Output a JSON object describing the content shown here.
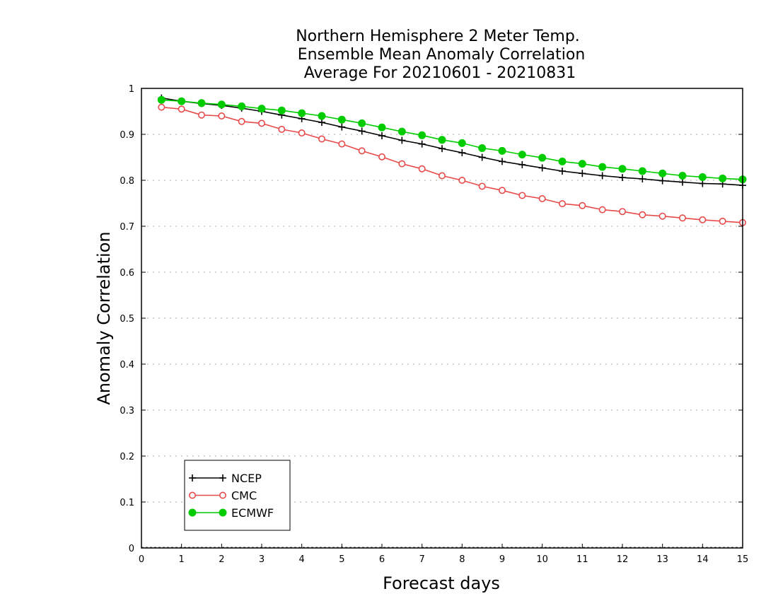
{
  "chart_data": {
    "type": "line",
    "title_lines": [
      "Northern Hemisphere 2 Meter Temp.",
      "Ensemble Mean Anomaly Correlation",
      "Average For 20210601 - 20210831"
    ],
    "xlabel": "Forecast days",
    "ylabel": "Anomaly Correlation",
    "xlim": [
      0,
      15
    ],
    "ylim": [
      0,
      1
    ],
    "x_ticks": [
      "0",
      "1",
      "2",
      "3",
      "4",
      "5",
      "6",
      "7",
      "8",
      "9",
      "10",
      "11",
      "12",
      "13",
      "14",
      "15"
    ],
    "y_ticks": [
      "0",
      "0.1",
      "0.2",
      "0.3",
      "0.4",
      "0.5",
      "0.6",
      "0.7",
      "0.8",
      "0.9",
      "1"
    ],
    "grid": "horizontal dotted",
    "legend_position": "bottom-left",
    "x": [
      0.5,
      1,
      1.5,
      2,
      2.5,
      3,
      3.5,
      4,
      4.5,
      5,
      5.5,
      6,
      6.5,
      7,
      7.5,
      8,
      8.5,
      9,
      9.5,
      10,
      10.5,
      11,
      11.5,
      12,
      12.5,
      13,
      13.5,
      14,
      14.5,
      15
    ],
    "series": [
      {
        "name": "NCEP",
        "color": "#000000",
        "marker": "plus",
        "values": [
          0.979,
          0.972,
          0.967,
          0.963,
          0.957,
          0.95,
          0.942,
          0.934,
          0.926,
          0.916,
          0.907,
          0.897,
          0.887,
          0.879,
          0.869,
          0.86,
          0.85,
          0.841,
          0.834,
          0.827,
          0.82,
          0.815,
          0.81,
          0.806,
          0.803,
          0.799,
          0.796,
          0.793,
          0.792,
          0.789
        ]
      },
      {
        "name": "CMC",
        "color": "#e84a4a",
        "marker": "open-circle",
        "values": [
          0.959,
          0.955,
          0.942,
          0.94,
          0.928,
          0.924,
          0.911,
          0.903,
          0.89,
          0.879,
          0.864,
          0.851,
          0.836,
          0.825,
          0.81,
          0.8,
          0.787,
          0.778,
          0.767,
          0.76,
          0.749,
          0.745,
          0.736,
          0.732,
          0.725,
          0.722,
          0.718,
          0.714,
          0.711,
          0.708
        ]
      },
      {
        "name": "ECMWF",
        "color": "#00cc00",
        "marker": "filled-circle",
        "values": [
          0.975,
          0.972,
          0.968,
          0.965,
          0.961,
          0.956,
          0.952,
          0.946,
          0.94,
          0.932,
          0.924,
          0.915,
          0.906,
          0.898,
          0.888,
          0.881,
          0.87,
          0.864,
          0.856,
          0.849,
          0.841,
          0.836,
          0.829,
          0.825,
          0.82,
          0.815,
          0.81,
          0.807,
          0.804,
          0.802
        ]
      }
    ]
  }
}
